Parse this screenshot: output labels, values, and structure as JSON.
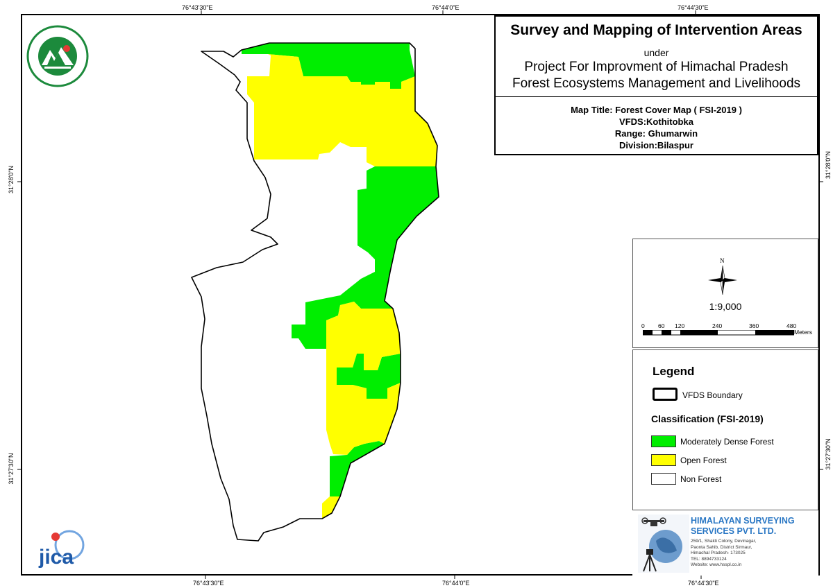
{
  "map": {
    "coords_top": [
      "76°43'30\"E",
      "76°44'0\"E",
      "76°44'30\"E"
    ],
    "coords_bottom": [
      "76°43'30\"E",
      "76°44'0\"E",
      "76°44'30\"E"
    ],
    "coords_left": [
      "31°28'0\"N",
      "31°27'30\"N"
    ],
    "coords_right": [
      "31°28'0\"N",
      "31°27'30\"N"
    ],
    "colors": {
      "moderately_dense": "#00ee00",
      "open": "#ffff00",
      "non_forest": "#ffffff",
      "boundary": "#000000"
    }
  },
  "title": {
    "main": "Survey and Mapping of Intervention Areas",
    "under": "under",
    "project_line1": "Project For Improvment of Himachal Pradesh",
    "project_line2": "Forest Ecosystems Management and Livelihoods",
    "map_title": "Map Title:  Forest Cover Map ( FSI-2019 )",
    "vfds": "VFDS:Kothitobka",
    "range": "Range: Ghumarwin",
    "division": "Division:Bilaspur"
  },
  "scale": {
    "north": "N",
    "ratio": "1:9,000",
    "ticks": [
      "0",
      "60",
      "120",
      "240",
      "360",
      "480"
    ],
    "unit": "Meters"
  },
  "legend": {
    "title": "Legend",
    "boundary_label": "VFDS Boundary",
    "classification_title": "Classification (FSI-2019)",
    "items": [
      {
        "label": "Moderately Dense Forest",
        "color": "#00ee00"
      },
      {
        "label": "Open Forest",
        "color": "#ffff00"
      },
      {
        "label": "Non Forest",
        "color": "#ffffff"
      }
    ]
  },
  "company": {
    "name_line1": "HIMALAYAN SURVEYING",
    "name_line2": "SERVICES PVT. LTD.",
    "address": [
      "259/1, Shakti Colony, Devinagar,",
      "Paonta Sahib, District Sirmaur,",
      "Himachal Pradesh- 173025",
      "TEL: 8894733124",
      "Website: www.hsspl.co.in"
    ]
  },
  "logos": {
    "jica": "JICA",
    "hp_forest_emblem": "HP forest department emblem"
  }
}
